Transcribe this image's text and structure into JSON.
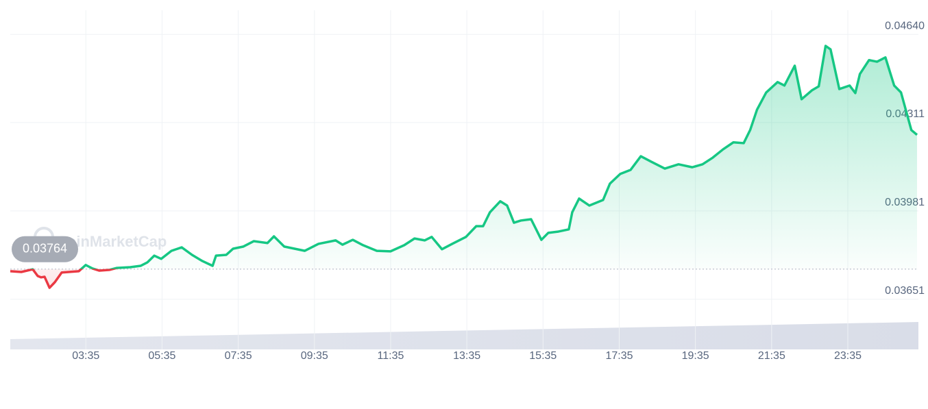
{
  "chart_data": {
    "type": "line",
    "watermark": "CoinMarketCap",
    "reference_price": 0.03764,
    "color": "#16c784",
    "down_color": "#ea3943",
    "grid": true,
    "x": [
      1.6,
      1.89,
      2.19,
      2.32,
      2.41,
      2.5,
      2.63,
      2.77,
      2.95,
      3.13,
      3.4,
      3.58,
      3.76,
      3.94,
      4.21,
      4.39,
      4.75,
      5.02,
      5.2,
      5.38,
      5.56,
      5.83,
      6.1,
      6.37,
      6.64,
      6.91,
      7.0,
      7.27,
      7.45,
      7.72,
      7.99,
      8.35,
      8.52,
      8.79,
      9.06,
      9.33,
      9.69,
      10.14,
      10.32,
      10.59,
      10.86,
      11.22,
      11.58,
      11.94,
      12.21,
      12.48,
      12.66,
      12.93,
      13.2,
      13.56,
      13.83,
      14.01,
      14.19,
      14.46,
      14.64,
      14.82,
      15.0,
      15.27,
      15.54,
      15.72,
      15.99,
      16.26,
      16.35,
      16.53,
      16.8,
      17.16,
      17.34,
      17.61,
      17.88,
      18.15,
      18.42,
      18.78,
      19.14,
      19.5,
      19.77,
      20.04,
      20.31,
      20.58,
      20.85,
      21.02,
      21.2,
      21.44,
      21.74,
      21.92,
      22.19,
      22.37,
      22.64,
      22.82,
      23.0,
      23.13,
      23.36,
      23.63,
      23.78,
      23.9,
      24.14,
      24.35,
      24.57,
      24.8,
      24.98,
      25.25,
      25.4
    ],
    "values": [
      0.03756,
      0.03753,
      0.03763,
      0.03738,
      0.03733,
      0.03735,
      0.03694,
      0.03715,
      0.03751,
      0.03753,
      0.03756,
      0.03779,
      0.03766,
      0.03758,
      0.03761,
      0.03768,
      0.03771,
      0.03776,
      0.03789,
      0.03814,
      0.03802,
      0.03832,
      0.03845,
      0.03817,
      0.03794,
      0.03776,
      0.03814,
      0.03817,
      0.0384,
      0.03848,
      0.03868,
      0.03861,
      0.03886,
      0.03848,
      0.0384,
      0.03832,
      0.03858,
      0.03871,
      0.03855,
      0.03873,
      0.03853,
      0.03832,
      0.0383,
      0.03853,
      0.03878,
      0.03871,
      0.03884,
      0.03838,
      0.03858,
      0.03884,
      0.03924,
      0.03924,
      0.03976,
      0.04017,
      0.04001,
      0.03937,
      0.03945,
      0.0395,
      0.03873,
      0.03899,
      0.03904,
      0.03912,
      0.03976,
      0.04027,
      0.04001,
      0.04022,
      0.04083,
      0.04119,
      0.04134,
      0.04185,
      0.04165,
      0.04139,
      0.04155,
      0.04144,
      0.04155,
      0.0418,
      0.04211,
      0.04237,
      0.04234,
      0.04283,
      0.04359,
      0.04423,
      0.04462,
      0.04449,
      0.04523,
      0.04398,
      0.04431,
      0.04446,
      0.04597,
      0.04584,
      0.04436,
      0.04449,
      0.04421,
      0.04492,
      0.04544,
      0.04538,
      0.04554,
      0.04449,
      0.04423,
      0.04283,
      0.04265
    ],
    "xlim": [
      1.6,
      25.4
    ],
    "xticks": [
      {
        "value": 3.5833,
        "label": "03:35"
      },
      {
        "value": 5.5833,
        "label": "05:35"
      },
      {
        "value": 7.5833,
        "label": "07:35"
      },
      {
        "value": 9.5833,
        "label": "09:35"
      },
      {
        "value": 11.5833,
        "label": "11:35"
      },
      {
        "value": 13.5833,
        "label": "13:35"
      },
      {
        "value": 15.5833,
        "label": "15:35"
      },
      {
        "value": 17.5833,
        "label": "17:35"
      },
      {
        "value": 19.5833,
        "label": "19:35"
      },
      {
        "value": 21.5833,
        "label": "21:35"
      },
      {
        "value": 23.5833,
        "label": "23:35"
      }
    ],
    "ylim": [
      0.03464,
      0.0473
    ],
    "yticks": [
      {
        "value": 0.0464,
        "label": "0.04640"
      },
      0.04311,
      0.03981,
      0.03651
    ]
  }
}
